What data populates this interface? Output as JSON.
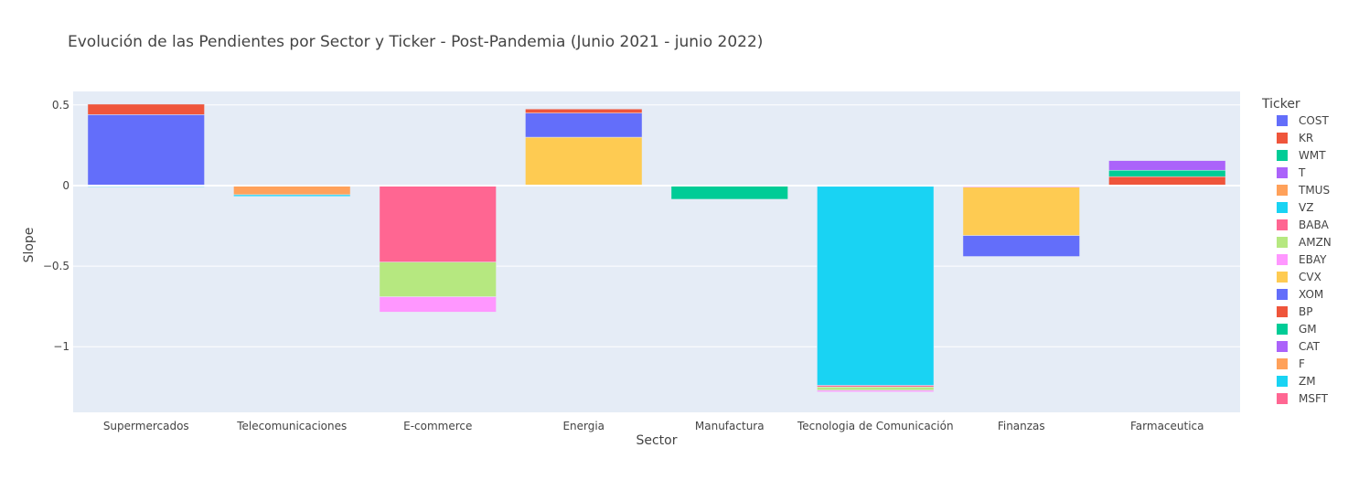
{
  "chart_data": {
    "type": "bar",
    "barmode": "relative",
    "title": "Evolución de las Pendientes por Sector y Ticker - Post-Pandemia (Junio 2021 - junio 2022)",
    "xlabel": "Sector",
    "ylabel": "Slope",
    "ylim": [
      -1.407,
      0.584
    ],
    "yticks": [
      {
        "value": 0.5,
        "label": "0.5"
      },
      {
        "value": 0,
        "label": "0"
      },
      {
        "value": -0.5,
        "label": "−0.5"
      },
      {
        "value": -1,
        "label": "−1"
      }
    ],
    "grid": true,
    "legend_title": "Ticker",
    "legend_position": "right",
    "categories": [
      "Supermercados",
      "Telecomunicaciones",
      "E-commerce",
      "Energia",
      "Manufactura",
      "Tecnologia de Comunicación",
      "Finanzas",
      "Farmaceutica"
    ],
    "series": [
      {
        "name": "COST",
        "color": "#636efa",
        "values": [
          0.44,
          0,
          0,
          0,
          0,
          0,
          0,
          0
        ]
      },
      {
        "name": "KR",
        "color": "#EF553B",
        "values": [
          0.065,
          0,
          0,
          0,
          0,
          0,
          0,
          0
        ]
      },
      {
        "name": "WMT",
        "color": "#00cc96",
        "values": [
          -0.005,
          0,
          0,
          0,
          0,
          0,
          0,
          0
        ]
      },
      {
        "name": "T",
        "color": "#ab63fa",
        "values": [
          0,
          -0.002,
          0,
          0,
          0,
          0,
          0,
          0
        ]
      },
      {
        "name": "TMUS",
        "color": "#FFA15A",
        "values": [
          0,
          -0.055,
          0,
          0,
          0,
          0,
          0,
          0
        ]
      },
      {
        "name": "VZ",
        "color": "#19d3f3",
        "values": [
          -0.004,
          -0.01,
          0,
          0,
          0,
          0,
          0,
          0
        ]
      },
      {
        "name": "BABA",
        "color": "#FF6692",
        "values": [
          0,
          0,
          -0.475,
          0,
          0,
          0,
          0,
          0
        ]
      },
      {
        "name": "AMZN",
        "color": "#B6E880",
        "values": [
          0,
          0,
          -0.215,
          0,
          0,
          0,
          0,
          0
        ]
      },
      {
        "name": "EBAY",
        "color": "#FF97FF",
        "values": [
          0,
          0,
          -0.095,
          0,
          0,
          0,
          -0.01,
          0
        ]
      },
      {
        "name": "CVX",
        "color": "#FECB52",
        "values": [
          0,
          0,
          0,
          0.3,
          0,
          0,
          -0.3,
          0
        ]
      },
      {
        "name": "XOM",
        "color": "#636efa",
        "values": [
          0,
          0,
          0,
          0.15,
          0,
          0,
          -0.13,
          0
        ]
      },
      {
        "name": "BP",
        "color": "#EF553B",
        "values": [
          0,
          0,
          0,
          0.025,
          0,
          0,
          0,
          0.055
        ]
      },
      {
        "name": "GM",
        "color": "#00cc96",
        "values": [
          0,
          0,
          0,
          0,
          -0.085,
          0,
          0,
          0.04
        ]
      },
      {
        "name": "CAT",
        "color": "#ab63fa",
        "values": [
          0,
          0,
          0,
          0,
          0,
          0,
          0,
          0.06
        ]
      },
      {
        "name": "F",
        "color": "#FFA15A",
        "values": [
          0,
          0,
          0,
          0,
          0,
          -0.005,
          0,
          0
        ]
      },
      {
        "name": "ZM",
        "color": "#19d3f3",
        "values": [
          0,
          0,
          0,
          0,
          0,
          -1.235,
          0,
          0
        ]
      },
      {
        "name": "MSFT",
        "color": "#FF6692",
        "values": [
          0,
          0,
          0,
          0,
          0,
          -0.01,
          0,
          0
        ]
      },
      {
        "name": "",
        "color": "#B6E880",
        "values": [
          0,
          0,
          0,
          0,
          0,
          -0.02,
          0,
          0
        ]
      },
      {
        "name": "",
        "color": "#FF97FF",
        "values": [
          0,
          0,
          0,
          0,
          0,
          -0.01,
          0,
          0
        ]
      }
    ]
  }
}
